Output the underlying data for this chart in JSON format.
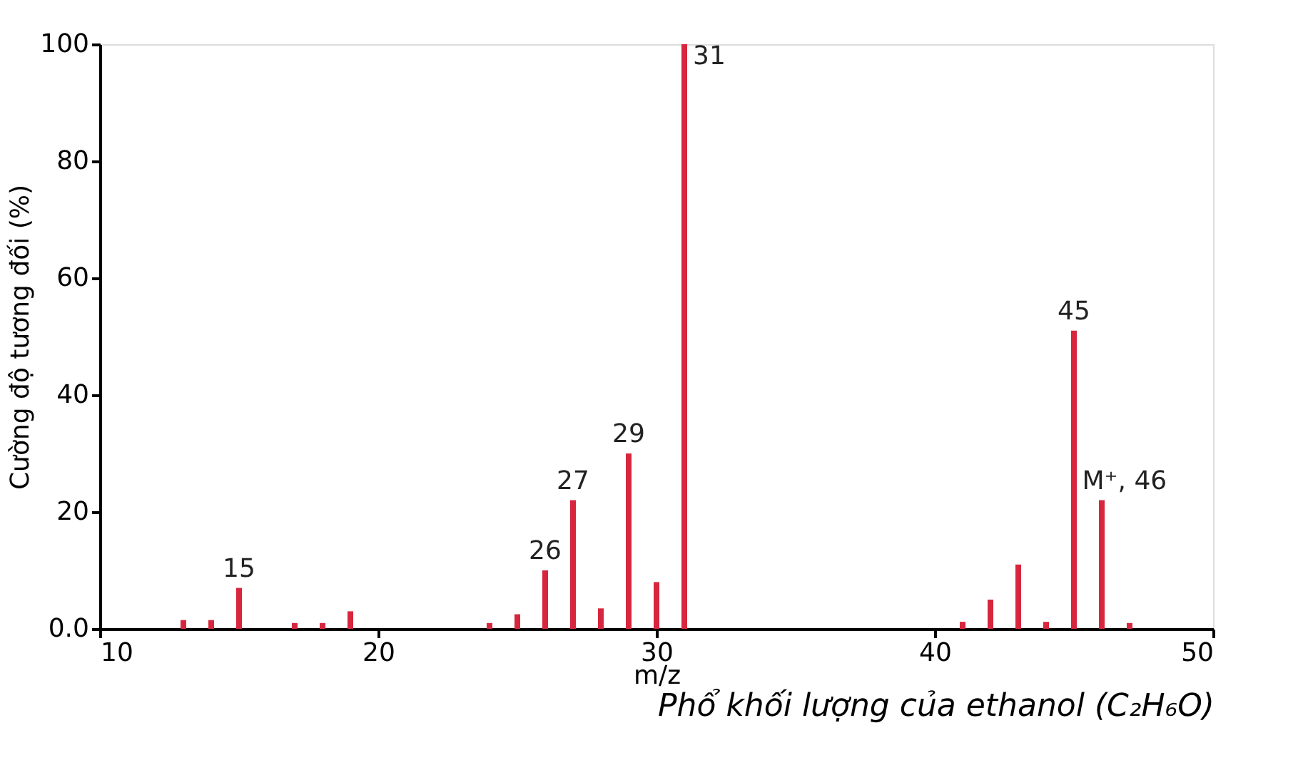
{
  "chart_data": {
    "type": "bar",
    "title": "Phổ khối lượng của ethanol (C₂H₆O)",
    "xlabel": "m/z",
    "ylabel": "Cường độ tương đối (%)",
    "x": [
      13,
      14,
      15,
      17,
      18,
      19,
      24,
      25,
      26,
      27,
      28,
      29,
      30,
      31,
      41,
      42,
      43,
      44,
      45,
      46,
      47
    ],
    "series": [
      {
        "color": "#d7263d",
        "values": [
          1.5,
          1.5,
          7,
          1,
          1,
          3,
          1,
          2.5,
          10,
          22,
          3.5,
          30,
          8,
          100,
          1.2,
          5,
          11,
          1.2,
          51,
          22,
          1
        ]
      }
    ],
    "xlim": [
      10,
      50
    ],
    "xticks": [
      10,
      20,
      30,
      40,
      50
    ],
    "ylim": [
      0,
      100
    ],
    "yticks": [
      {
        "value": 0,
        "label": "0.0"
      },
      20,
      40,
      60,
      80,
      100
    ],
    "annotations": [
      {
        "text": "15",
        "x": 15,
        "y": 7
      },
      {
        "text": "26",
        "x": 26,
        "y": 10
      },
      {
        "text": "27",
        "x": 27,
        "y": 22
      },
      {
        "text": "29",
        "x": 29,
        "y": 30
      },
      {
        "text": "31",
        "x": 31,
        "y": 100
      },
      {
        "text": "45",
        "x": 45,
        "y": 51
      },
      {
        "text": "M⁺, 46",
        "x": 46,
        "y": 22
      }
    ],
    "grid": false
  }
}
